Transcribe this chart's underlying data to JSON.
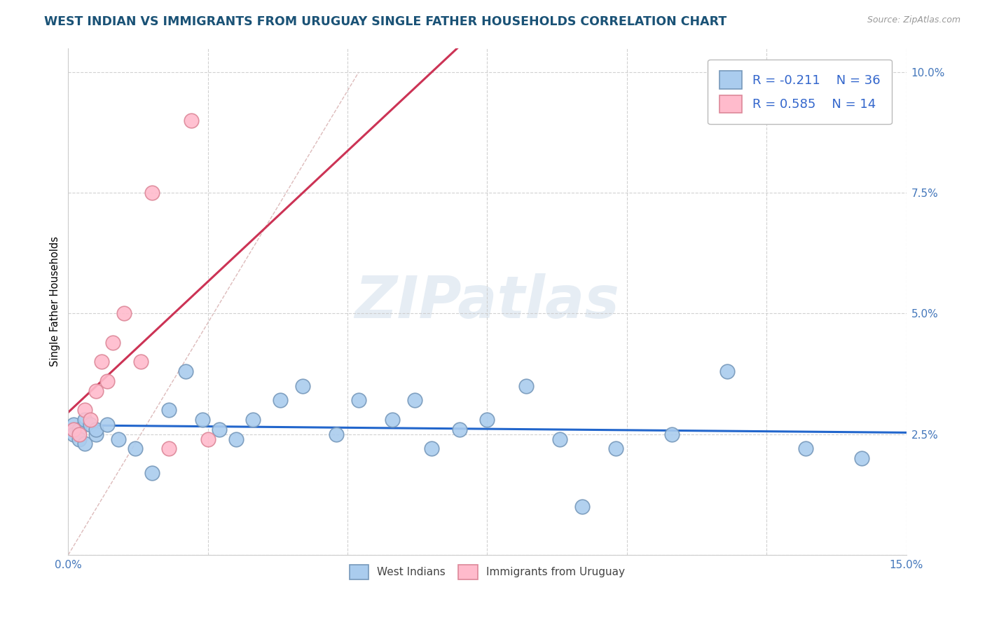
{
  "title": "WEST INDIAN VS IMMIGRANTS FROM URUGUAY SINGLE FATHER HOUSEHOLDS CORRELATION CHART",
  "source": "Source: ZipAtlas.com",
  "ylabel": "Single Father Households",
  "xlim": [
    0.0,
    0.15
  ],
  "ylim": [
    0.0,
    0.105
  ],
  "watermark": "ZIPatlas",
  "background_color": "#ffffff",
  "grid_color": "#cccccc",
  "title_color": "#1a5276",
  "title_fontsize": 12.5,
  "west_indians_x": [
    0.001,
    0.001,
    0.002,
    0.002,
    0.003,
    0.003,
    0.004,
    0.005,
    0.005,
    0.007,
    0.009,
    0.012,
    0.015,
    0.018,
    0.021,
    0.024,
    0.027,
    0.03,
    0.033,
    0.038,
    0.042,
    0.048,
    0.052,
    0.058,
    0.062,
    0.065,
    0.07,
    0.075,
    0.082,
    0.088,
    0.092,
    0.098,
    0.108,
    0.118,
    0.132,
    0.142
  ],
  "west_indians_y": [
    0.027,
    0.025,
    0.026,
    0.024,
    0.028,
    0.023,
    0.027,
    0.025,
    0.026,
    0.027,
    0.024,
    0.022,
    0.017,
    0.03,
    0.038,
    0.028,
    0.026,
    0.024,
    0.028,
    0.032,
    0.035,
    0.025,
    0.032,
    0.028,
    0.032,
    0.022,
    0.026,
    0.028,
    0.035,
    0.024,
    0.01,
    0.022,
    0.025,
    0.038,
    0.022,
    0.02
  ],
  "uruguay_x": [
    0.001,
    0.002,
    0.003,
    0.004,
    0.005,
    0.006,
    0.007,
    0.008,
    0.01,
    0.013,
    0.015,
    0.018,
    0.022,
    0.025
  ],
  "uruguay_y": [
    0.026,
    0.025,
    0.03,
    0.028,
    0.034,
    0.04,
    0.036,
    0.044,
    0.05,
    0.04,
    0.075,
    0.022,
    0.09,
    0.024
  ],
  "blue_scatter_color": "#aaccee",
  "blue_scatter_edge": "#7799bb",
  "pink_scatter_color": "#ffbbcc",
  "pink_scatter_edge": "#dd8899",
  "blue_line_color": "#2266cc",
  "pink_line_color": "#cc3355",
  "ref_line_color": "#ddbbbb"
}
